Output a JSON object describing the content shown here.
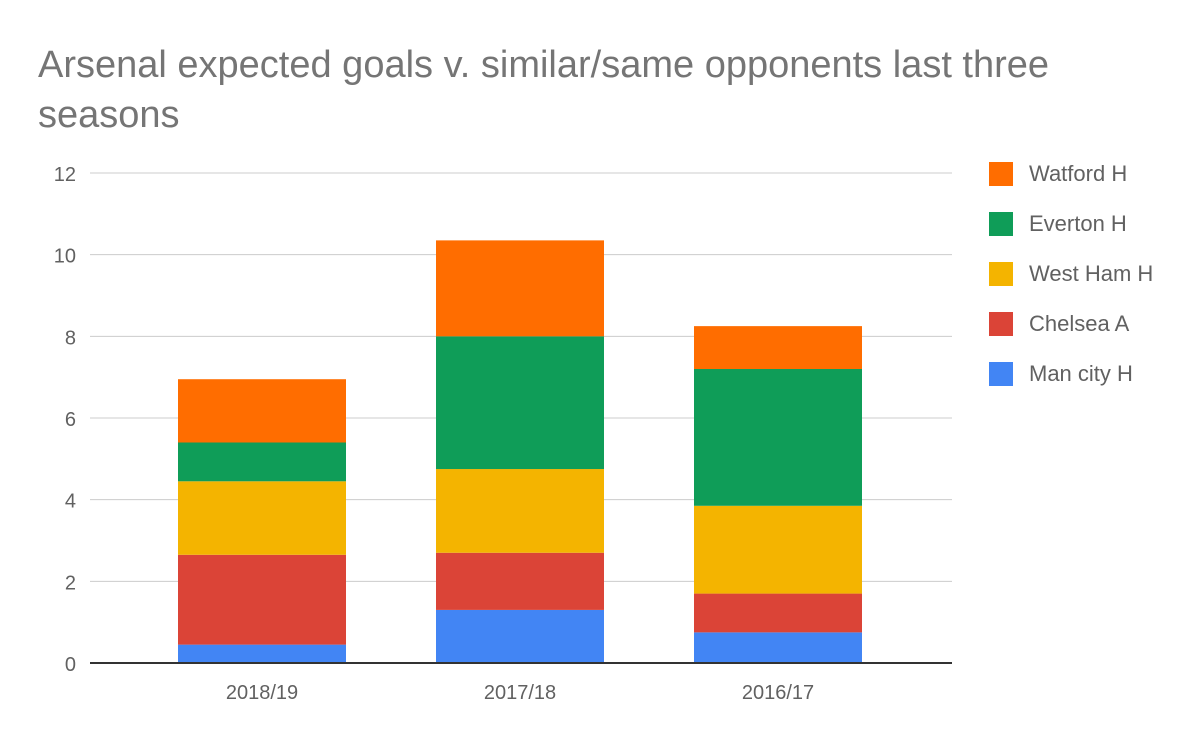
{
  "chart_data": {
    "type": "bar",
    "stacked": true,
    "title": "Arsenal expected goals v. similar/same opponents last three seasons",
    "xlabel": "",
    "ylabel": "",
    "categories": [
      "2018/19",
      "2017/18",
      "2016/17"
    ],
    "ylim": [
      0,
      12
    ],
    "yticks": [
      0,
      2,
      4,
      6,
      8,
      10,
      12
    ],
    "grid": true,
    "legend_position": "right",
    "series": [
      {
        "name": "Man city H",
        "color": "#4285f4",
        "values": [
          0.45,
          1.3,
          0.75
        ]
      },
      {
        "name": "Chelsea A",
        "color": "#db4437",
        "values": [
          2.2,
          1.4,
          0.95
        ]
      },
      {
        "name": "West Ham H",
        "color": "#f4b400",
        "values": [
          1.8,
          2.05,
          2.15
        ]
      },
      {
        "name": "Everton H",
        "color": "#0f9d58",
        "values": [
          0.95,
          3.25,
          3.35
        ]
      },
      {
        "name": "Watford H",
        "color": "#ff6d00",
        "values": [
          1.55,
          2.35,
          1.05
        ]
      }
    ]
  }
}
